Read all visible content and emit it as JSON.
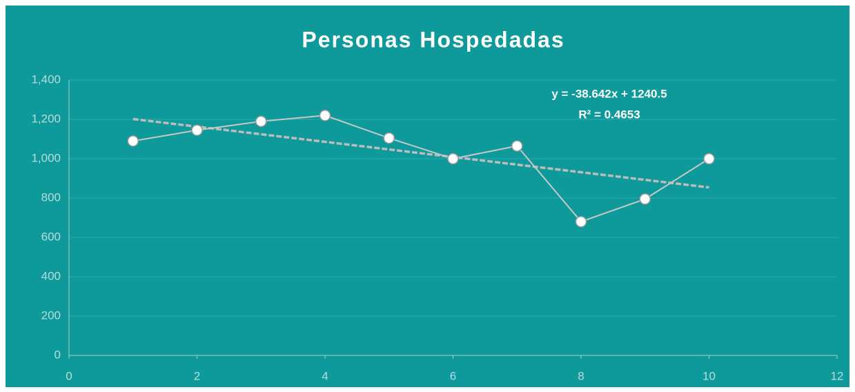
{
  "chart_data": {
    "type": "scatter",
    "title": "Personas Hospedadas",
    "series": [
      {
        "name": "Personas Hospedadas",
        "color": "#c8c8c8",
        "x": [
          1,
          2,
          3,
          4,
          5,
          6,
          7,
          8,
          9,
          10
        ],
        "values": [
          1090,
          1145,
          1190,
          1220,
          1105,
          1000,
          1065,
          680,
          795,
          1000
        ]
      }
    ],
    "xlim": [
      0,
      12
    ],
    "xticks": [
      0,
      2,
      4,
      6,
      8,
      10,
      12
    ],
    "ylim": [
      0,
      1400
    ],
    "yticks": [
      0,
      200,
      400,
      600,
      800,
      {
        "value": 1000,
        "label": "1,000"
      },
      {
        "value": 1200,
        "label": "1,200"
      },
      {
        "value": 1400,
        "label": "1,400"
      }
    ],
    "grid": true,
    "trendline": {
      "slope": -38.642,
      "intercept": 1240.5,
      "color": "#bcbcbc",
      "equation": "y = -38.642x + 1240.5",
      "r_squared": "R² = 0.4653"
    }
  }
}
